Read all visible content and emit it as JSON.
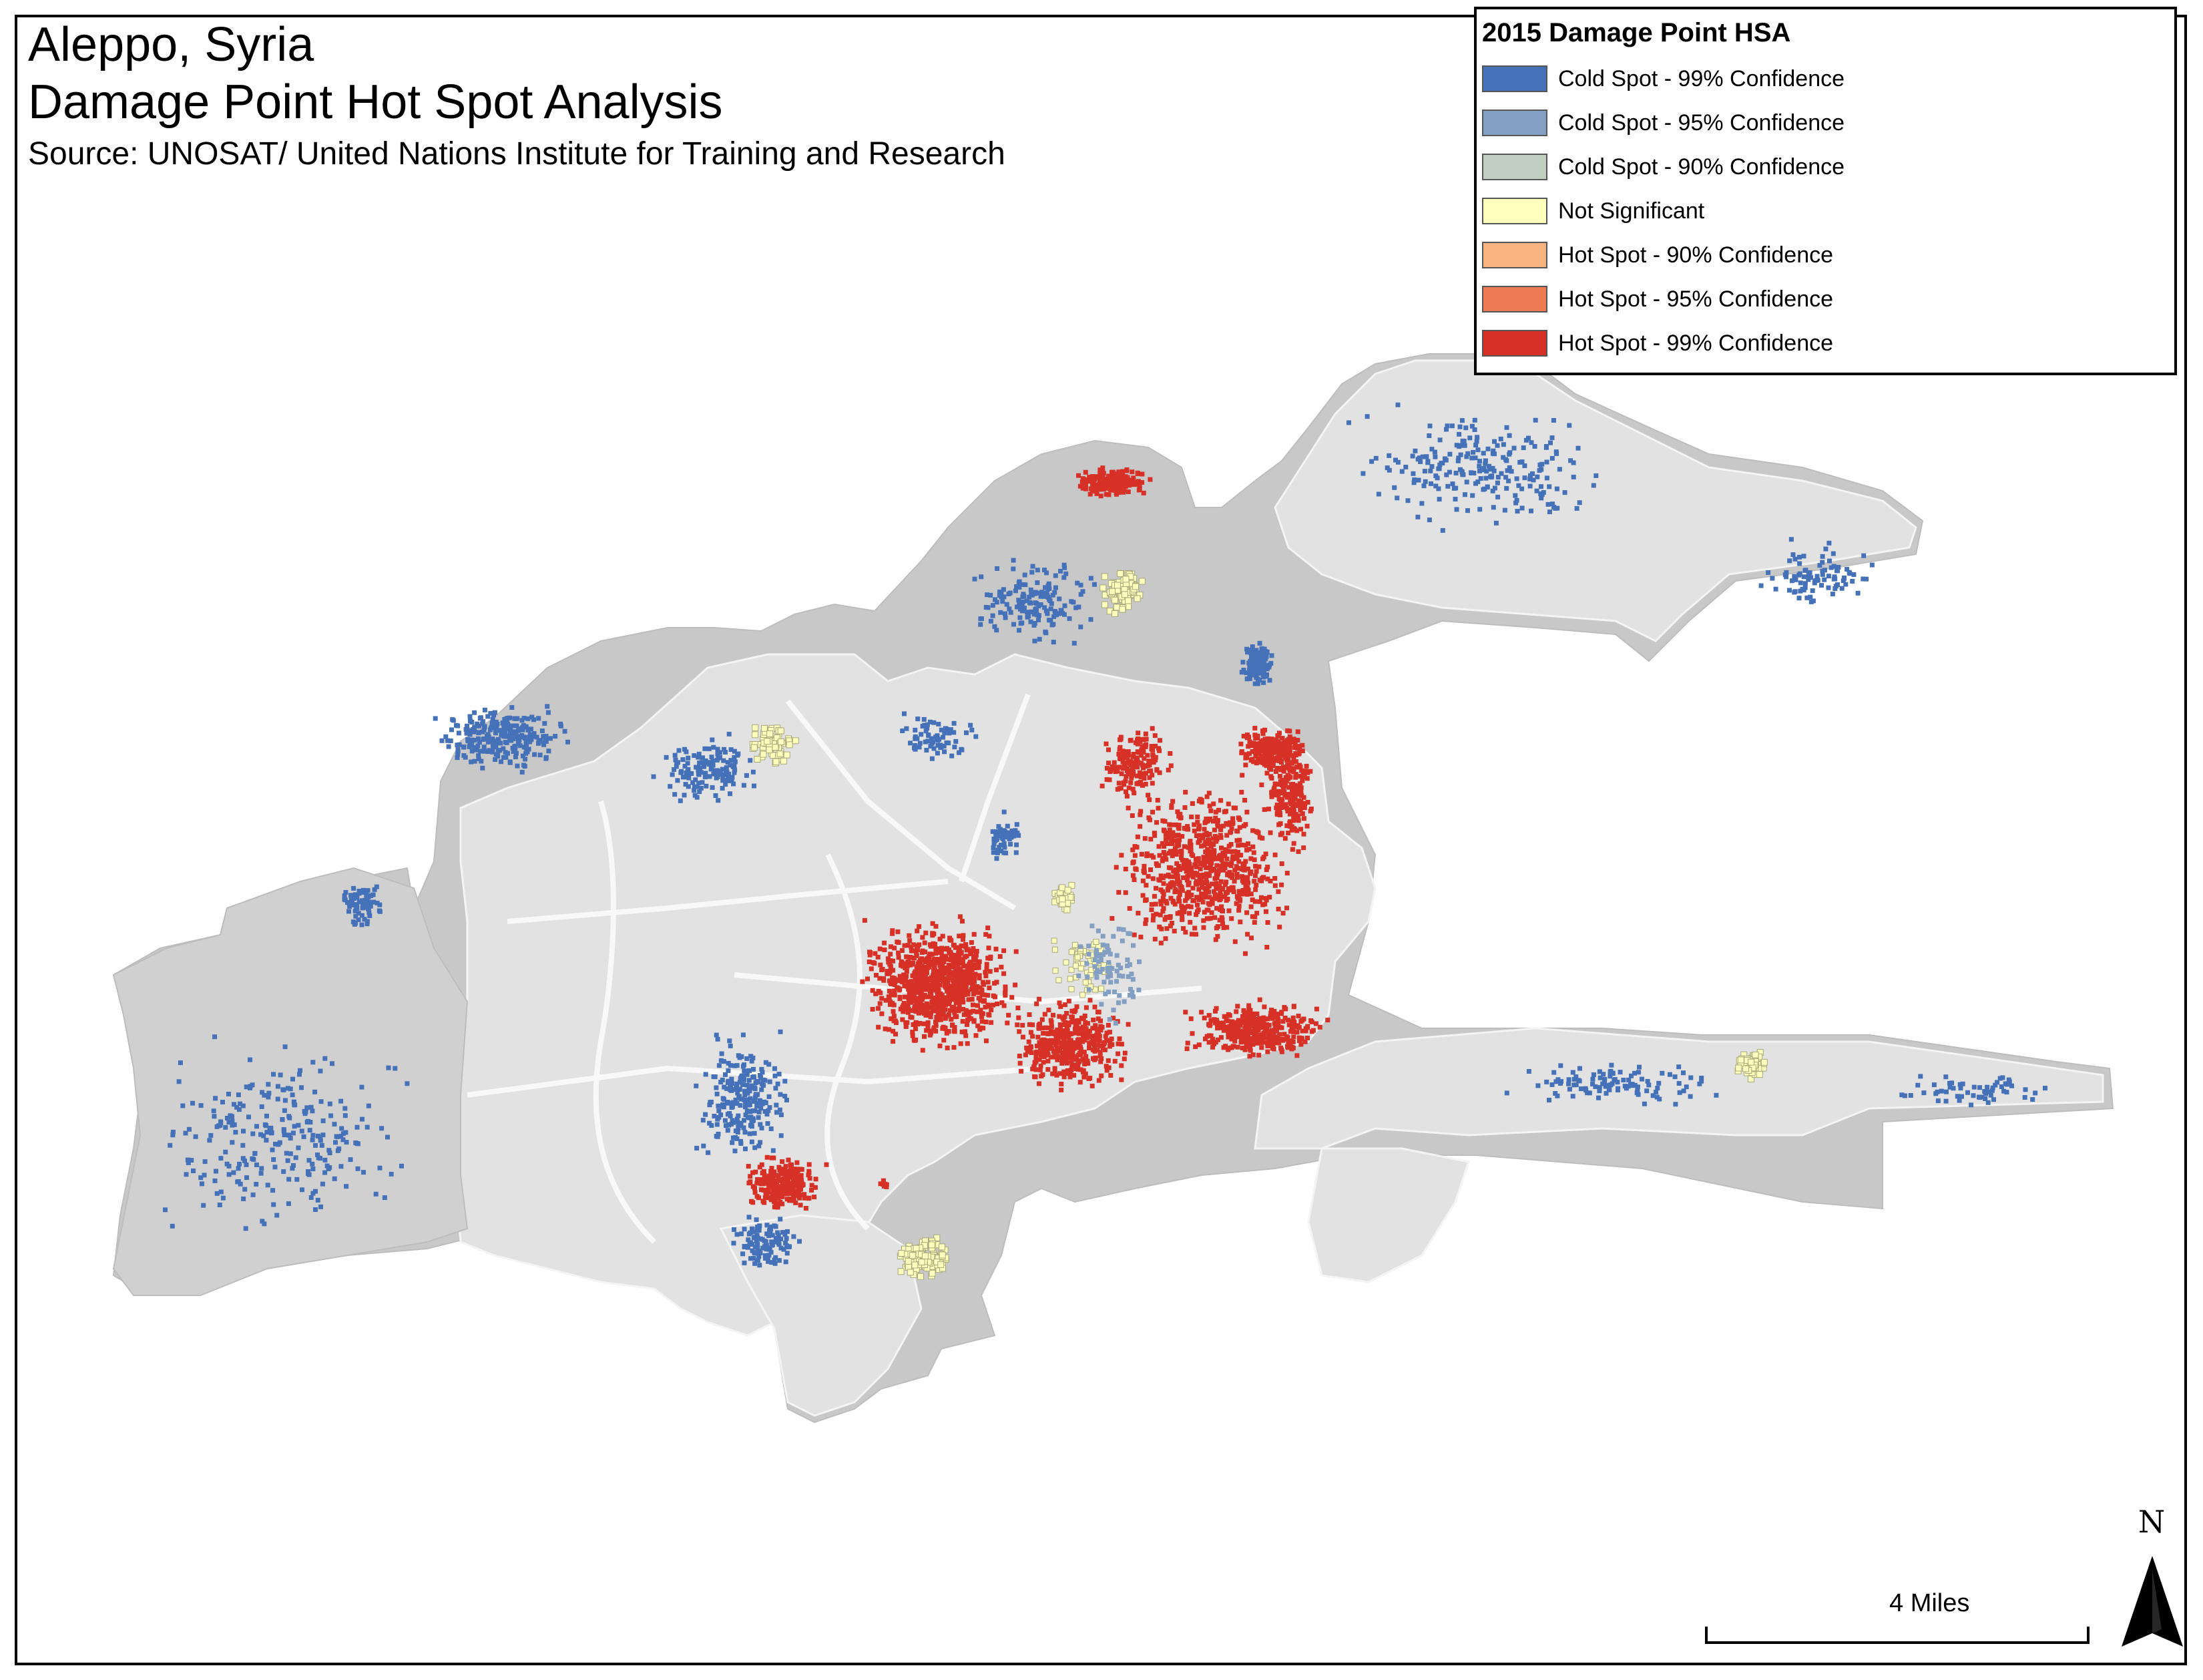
{
  "title": {
    "line1": "Aleppo, Syria",
    "line2": "Damage Point Hot Spot Analysis",
    "source": "Source: UNOSAT/ United Nations Institute for Training and Research"
  },
  "legend": {
    "title": "2015 Damage Point HSA",
    "items": [
      {
        "label": "Cold Spot - 99% Confidence",
        "color": "#4571b8"
      },
      {
        "label": "Cold Spot - 95% Confidence",
        "color": "#839fc2"
      },
      {
        "label": "Cold Spot - 90% Confidence",
        "color": "#c0cfc0"
      },
      {
        "label": "Not Significant",
        "color": "#ffffbe"
      },
      {
        "label": "Hot Spot - 90% Confidence",
        "color": "#f7b481"
      },
      {
        "label": "Hot Spot - 95% Confidence",
        "color": "#ef7b55"
      },
      {
        "label": "Hot Spot - 99% Confidence",
        "color": "#d73027"
      }
    ]
  },
  "scale": {
    "label": "4 Miles"
  },
  "north_arrow": {
    "letter": "N"
  },
  "colors": {
    "outer_area": "#c8c8c8",
    "district": "#e2e2e2",
    "district_border": "#f6f6f6",
    "cold99": "#4571b8",
    "cold95": "#839fc2",
    "not_significant": "#ffffbe",
    "hot99": "#d73027"
  }
}
